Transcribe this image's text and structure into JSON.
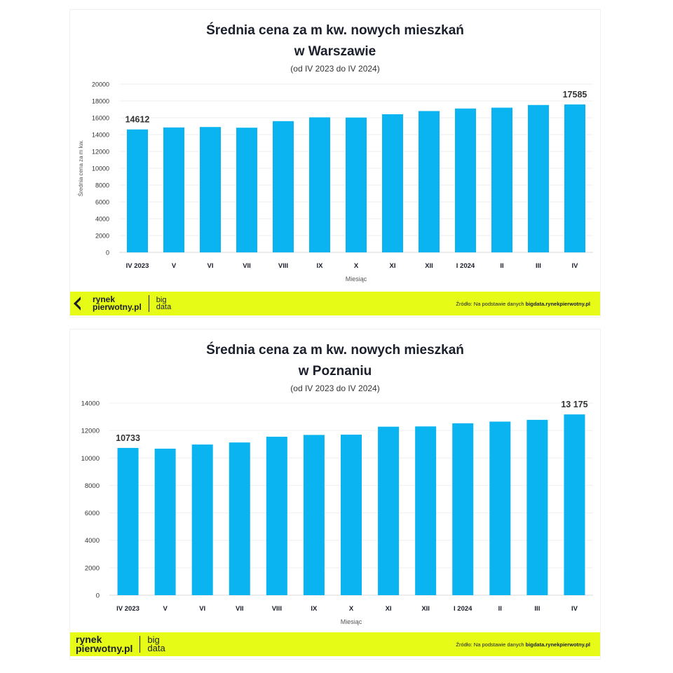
{
  "chart_data": [
    {
      "type": "bar",
      "title_line1": "Średnia cena za m kw. nowych mieszkań",
      "title_line2": "w Warszawie",
      "subtitle": "(od IV 2023 do IV 2024)",
      "categories": [
        "IV 2023",
        "V",
        "VI",
        "VII",
        "VIII",
        "IX",
        "X",
        "XI",
        "XII",
        "I 2024",
        "II",
        "III",
        "IV"
      ],
      "values": [
        14612,
        14850,
        14900,
        14820,
        15600,
        16050,
        16030,
        16420,
        16800,
        17100,
        17200,
        17520,
        17585
      ],
      "data_labels": {
        "0": "14612",
        "12": "17585"
      },
      "xlabel": "Miesiąc",
      "ylabel": "Średnia cena za m kw.",
      "ylim": [
        0,
        20000
      ],
      "yticks": [
        0,
        2000,
        4000,
        6000,
        8000,
        10000,
        12000,
        14000,
        16000,
        18000,
        20000
      ],
      "bar_color": "#0ab4f0",
      "grid": true
    },
    {
      "type": "bar",
      "title_line1": "Średnia cena za m kw. nowych mieszkań",
      "title_line2": "w Poznaniu",
      "subtitle": "(od IV 2023 do IV 2024)",
      "categories": [
        "IV 2023",
        "V",
        "VI",
        "VII",
        "VIII",
        "IX",
        "X",
        "XI",
        "XII",
        "I 2024",
        "II",
        "III",
        "IV"
      ],
      "values": [
        10733,
        10680,
        10980,
        11130,
        11550,
        11680,
        11700,
        12280,
        12300,
        12530,
        12650,
        12780,
        13175
      ],
      "data_labels": {
        "0": "10733",
        "12": "13 175"
      },
      "xlabel": "Miesiąc",
      "ylabel": "",
      "ylim": [
        0,
        14000
      ],
      "yticks": [
        0,
        2000,
        4000,
        6000,
        8000,
        10000,
        12000,
        14000
      ],
      "bar_color": "#0ab4f0",
      "grid": true
    }
  ],
  "footer": {
    "logo_line1": "rynek",
    "logo_line2": "pierwotny.pl",
    "bd_line1": "big",
    "bd_line2": "data",
    "source_prefix": "Źródło: Na podstawie danych ",
    "source_link": "bigdata.rynekpierwotny.pl"
  },
  "colors": {
    "accent": "#e6fb16",
    "bar": "#0ab4f0",
    "text": "#1b1e2b"
  }
}
